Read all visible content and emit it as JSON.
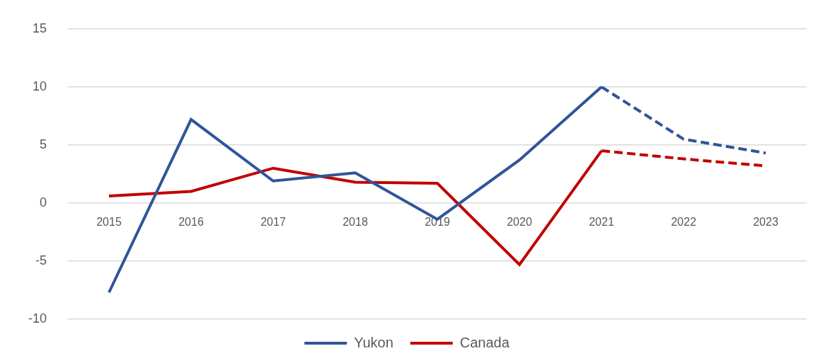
{
  "chart_data": {
    "type": "line",
    "categories": [
      "2015",
      "2016",
      "2017",
      "2018",
      "2019",
      "2020",
      "2021",
      "2022",
      "2023"
    ],
    "series": [
      {
        "name": "Yukon",
        "color": "#2f5597",
        "line_style": "solid",
        "values": [
          -7.7,
          7.2,
          1.9,
          2.6,
          -1.4,
          3.7,
          10,
          null,
          null
        ]
      },
      {
        "name": "Yukon",
        "color": "#2f5597",
        "line_style": "dashed",
        "values": [
          null,
          null,
          null,
          null,
          null,
          null,
          10,
          5.5,
          4.3
        ]
      },
      {
        "name": "Canada",
        "color": "#c00000",
        "line_style": "solid",
        "values": [
          0.6,
          1.0,
          3.0,
          1.8,
          1.7,
          -5.3,
          4.5,
          null,
          null
        ]
      },
      {
        "name": "Canada",
        "color": "#c00000",
        "line_style": "dashed",
        "values": [
          null,
          null,
          null,
          null,
          null,
          null,
          4.5,
          3.8,
          3.2
        ]
      }
    ],
    "ylim": [
      -10,
      15
    ],
    "yticks": [
      -10,
      -5,
      0,
      5,
      10,
      15
    ],
    "grid": true,
    "legend": "bottom"
  }
}
